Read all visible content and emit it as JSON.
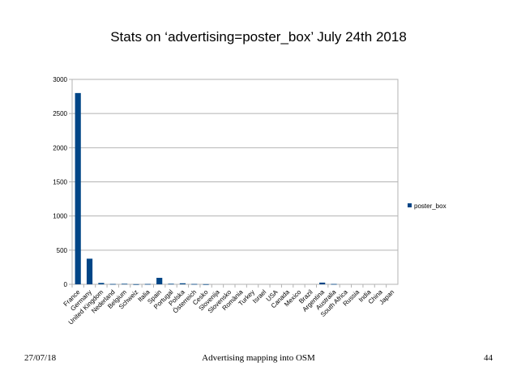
{
  "slide": {
    "title": "Stats on ‘advertising=poster_box’ July 24th 2018",
    "footer_date": "27/07/18",
    "footer_center": "Advertising mapping into OSM",
    "footer_page": "44"
  },
  "chart_data": {
    "type": "bar",
    "title": "",
    "xlabel": "",
    "ylabel": "",
    "ylim": [
      0,
      3000
    ],
    "yticks": [
      0,
      500,
      1000,
      1500,
      2000,
      2500,
      3000
    ],
    "grid": true,
    "legend_position": "right",
    "color": "#004586",
    "categories": [
      "France",
      "Germany",
      "United Kingdom",
      "Nederland",
      "Belgium",
      "Schweiz",
      "Italia",
      "Spain",
      "Portugal",
      "Polska",
      "Österreich",
      "Cesko",
      "Slovenija",
      "Slovensko",
      "România",
      "Turkey",
      "Israel",
      "USA",
      "Canada",
      "Mexico",
      "Brazil",
      "Argentina",
      "Australia",
      "South Africa",
      "Russia",
      "India",
      "China",
      "Japan"
    ],
    "series": [
      {
        "name": "poster_box",
        "values": [
          2800,
          375,
          20,
          5,
          8,
          2,
          5,
          95,
          8,
          15,
          5,
          2,
          0,
          0,
          0,
          0,
          0,
          0,
          0,
          0,
          0,
          25,
          5,
          0,
          0,
          0,
          0,
          0
        ]
      }
    ]
  }
}
